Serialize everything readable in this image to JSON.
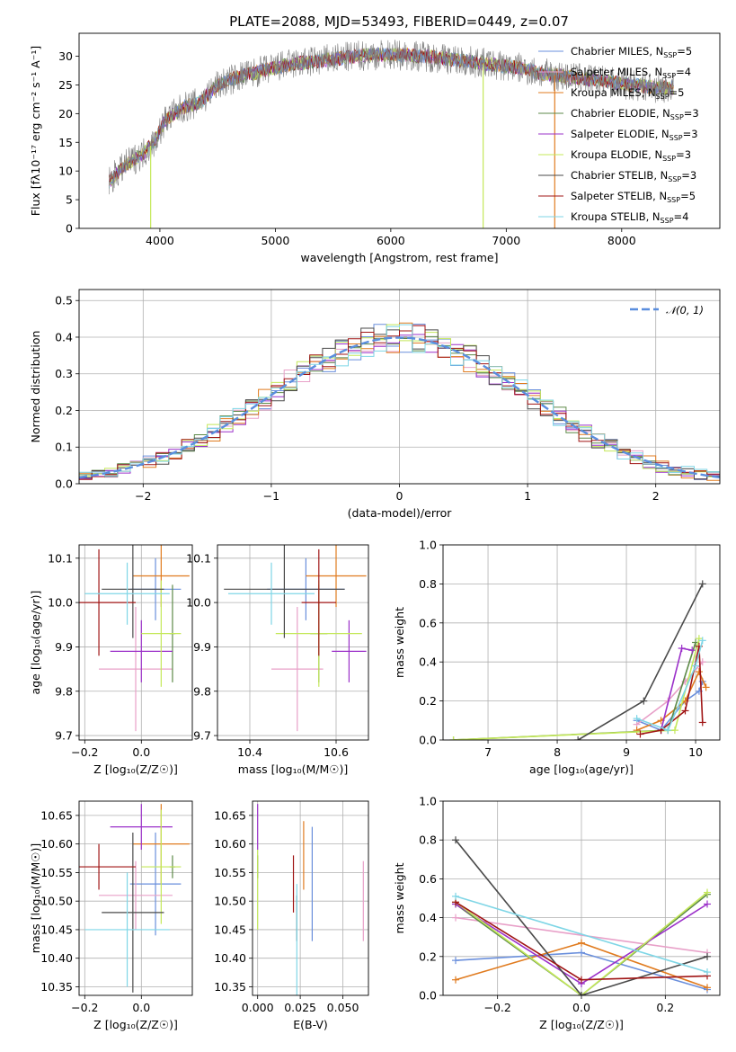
{
  "title": "PLATE=2088, MJD=53493, FIBERID=0449, z=0.07",
  "colors": {
    "Chabrier MILES": "#6a8fdc",
    "Salpeter MILES": "#e8a0c8",
    "Kroupa MILES": "#e07b1f",
    "Chabrier ELODIE": "#5d8a48",
    "Salpeter ELODIE": "#9b30c9",
    "Kroupa ELODIE": "#c4e85a",
    "Chabrier STELIB": "#4a4a4a",
    "Salpeter STELIB": "#a01515",
    "Kroupa STELIB": "#7fd6e6",
    "data": "#7f7f7f",
    "normal": "#5a8ede"
  },
  "legend": [
    {
      "name": "Chabrier MILES",
      "text": "Chabrier MILES, N",
      "sub": "SSP",
      "n": "=5"
    },
    {
      "name": "Salpeter MILES",
      "text": "Salpeter MILES, N",
      "sub": "SSP",
      "n": "=4"
    },
    {
      "name": "Kroupa MILES",
      "text": "Kroupa MILES, N",
      "sub": "SSP",
      "n": "=5"
    },
    {
      "name": "Chabrier ELODIE",
      "text": "Chabrier ELODIE, N",
      "sub": "SSP",
      "n": "=3"
    },
    {
      "name": "Salpeter ELODIE",
      "text": "Salpeter ELODIE, N",
      "sub": "SSP",
      "n": "=3"
    },
    {
      "name": "Kroupa ELODIE",
      "text": "Kroupa ELODIE, N",
      "sub": "SSP",
      "n": "=3"
    },
    {
      "name": "Chabrier STELIB",
      "text": "Chabrier STELIB, N",
      "sub": "SSP",
      "n": "=3"
    },
    {
      "name": "Salpeter STELIB",
      "text": "Salpeter STELIB, N",
      "sub": "SSP",
      "n": "=5"
    },
    {
      "name": "Kroupa STELIB",
      "text": "Kroupa STELIB, N",
      "sub": "SSP",
      "n": "=4"
    }
  ],
  "chart_data": [
    {
      "id": "spectrum",
      "type": "line",
      "xlabel": "wavelength [Angstrom, rest frame]",
      "ylabel": "Flux [fλ10⁻¹⁷ erg cm⁻² s⁻¹ A⁻¹]",
      "xlim": [
        3300,
        8850
      ],
      "ylim": [
        0,
        34
      ],
      "xticks": [
        4000,
        5000,
        6000,
        7000,
        8000
      ],
      "yticks": [
        0,
        5,
        10,
        15,
        20,
        25,
        30
      ],
      "grid": false,
      "continuum": {
        "x": [
          3550,
          3700,
          3850,
          3950,
          4050,
          4200,
          4350,
          4500,
          4700,
          4900,
          5100,
          5300,
          5500,
          5700,
          5900,
          6100,
          6300,
          6500,
          6700,
          6900,
          7100,
          7300,
          7500,
          7700,
          7900,
          8100,
          8300,
          8450
        ],
        "y": [
          8,
          11,
          13,
          15,
          19,
          21,
          22,
          25,
          26.5,
          27.5,
          28.5,
          29,
          29.5,
          30,
          30.3,
          30.2,
          30,
          29.5,
          29,
          28.5,
          28,
          27,
          26.5,
          26,
          25.5,
          25,
          24.5,
          24.5
        ]
      },
      "spikes": [
        {
          "x": 6800,
          "series": "Kroupa ELODIE"
        },
        {
          "x": 7420,
          "series": "Kroupa MILES"
        },
        {
          "x": 3920,
          "series": "Kroupa ELODIE"
        }
      ]
    },
    {
      "id": "residuals",
      "type": "step",
      "xlabel": "(data-model)/error",
      "ylabel": "Normed distribution",
      "xlim": [
        -2.5,
        2.5
      ],
      "ylim": [
        0,
        0.53
      ],
      "xticks": [
        -2,
        -1,
        0,
        1,
        2
      ],
      "yticks": [
        0.0,
        0.1,
        0.2,
        0.3,
        0.4,
        0.5
      ],
      "grid": true,
      "normal_curve": {
        "label": "𝒩(0, 1)",
        "mean": 0,
        "sigma": 1
      },
      "bin_width": 0.1
    },
    {
      "id": "age-vs-Z",
      "type": "errorbar",
      "xlabel": "Z [log₁₀(Z/Z☉)]",
      "ylabel": "age  [log₁₀(age/yr)]",
      "xlim": [
        -0.22,
        0.18
      ],
      "ylim": [
        9.69,
        10.13
      ],
      "xticks": [
        -0.2,
        0.0
      ],
      "yticks": [
        9.7,
        9.8,
        9.9,
        10.0,
        10.1
      ],
      "grid": true,
      "points": [
        {
          "series": "Chabrier MILES",
          "x": 0.05,
          "xerr": 0.09,
          "y": 10.03,
          "yerr": 0.07
        },
        {
          "series": "Salpeter MILES",
          "x": -0.02,
          "xerr": 0.13,
          "y": 9.85,
          "yerr": 0.14
        },
        {
          "series": "Kroupa MILES",
          "x": 0.07,
          "xerr": 0.1,
          "y": 10.06,
          "yerr": 0.07
        },
        {
          "series": "Chabrier ELODIE",
          "x": 0.11,
          "xerr": 0.01,
          "y": 9.93,
          "yerr": 0.11
        },
        {
          "series": "Salpeter ELODIE",
          "x": 0.0,
          "xerr": 0.11,
          "y": 9.89,
          "yerr": 0.07
        },
        {
          "series": "Kroupa ELODIE",
          "x": 0.07,
          "xerr": 0.07,
          "y": 9.93,
          "yerr": 0.12
        },
        {
          "series": "Chabrier STELIB",
          "x": -0.03,
          "xerr": 0.11,
          "y": 10.03,
          "yerr": 0.11
        },
        {
          "series": "Salpeter STELIB",
          "x": -0.15,
          "xerr": 0.13,
          "y": 10.0,
          "yerr": 0.12
        },
        {
          "series": "Kroupa STELIB",
          "x": -0.05,
          "xerr": 0.15,
          "y": 10.02,
          "yerr": 0.07
        }
      ]
    },
    {
      "id": "age-vs-mass",
      "type": "errorbar",
      "xlabel": "mass [log₁₀(M/M☉)]",
      "ylabel": "",
      "xlim": [
        10.325,
        10.675
      ],
      "ylim": [
        9.69,
        10.13
      ],
      "xticks": [
        10.4,
        10.6
      ],
      "yticks": [
        9.7,
        9.8,
        9.9,
        10.0,
        10.1
      ],
      "grid": true,
      "points": [
        {
          "series": "Chabrier MILES",
          "x": 10.53,
          "xerr": 0.09,
          "y": 10.03,
          "yerr": 0.07
        },
        {
          "series": "Salpeter MILES",
          "x": 10.51,
          "xerr": 0.06,
          "y": 9.85,
          "yerr": 0.14
        },
        {
          "series": "Kroupa MILES",
          "x": 10.6,
          "xerr": 0.07,
          "y": 10.06,
          "yerr": 0.07
        },
        {
          "series": "Chabrier ELODIE",
          "x": 10.56,
          "xerr": 0.02,
          "y": 9.93,
          "yerr": 0.11
        },
        {
          "series": "Salpeter ELODIE",
          "x": 10.63,
          "xerr": 0.04,
          "y": 9.89,
          "yerr": 0.07
        },
        {
          "series": "Kroupa ELODIE",
          "x": 10.56,
          "xerr": 0.1,
          "y": 9.93,
          "yerr": 0.12
        },
        {
          "series": "Chabrier STELIB",
          "x": 10.48,
          "xerr": 0.14,
          "y": 10.03,
          "yerr": 0.11
        },
        {
          "series": "Salpeter STELIB",
          "x": 10.56,
          "xerr": 0.04,
          "y": 10.0,
          "yerr": 0.12
        },
        {
          "series": "Kroupa STELIB",
          "x": 10.45,
          "xerr": 0.1,
          "y": 10.02,
          "yerr": 0.07
        }
      ]
    },
    {
      "id": "mass-weight-vs-age",
      "type": "line",
      "xlabel": "age  [log₁₀(age/yr)]",
      "ylabel": "mass weight",
      "xlim": [
        6.35,
        10.35
      ],
      "ylim": [
        0,
        1
      ],
      "xticks": [
        7,
        8,
        9,
        10
      ],
      "yticks": [
        0.0,
        0.2,
        0.4,
        0.6,
        0.8,
        1.0
      ],
      "grid": true,
      "series": [
        {
          "name": "Chabrier MILES",
          "x": [
            9.15,
            9.5,
            9.85,
            10.05,
            10.1
          ],
          "y": [
            0.1,
            0.05,
            0.2,
            0.25,
            0.3
          ]
        },
        {
          "name": "Salpeter MILES",
          "x": [
            9.15,
            9.6,
            9.85,
            10.1
          ],
          "y": [
            0.08,
            0.2,
            0.3,
            0.4
          ]
        },
        {
          "name": "Kroupa MILES",
          "x": [
            9.15,
            9.5,
            9.85,
            10.05,
            10.15
          ],
          "y": [
            0.05,
            0.1,
            0.2,
            0.35,
            0.27
          ]
        },
        {
          "name": "Chabrier ELODIE",
          "x": [
            6.5,
            9.6,
            10.0
          ],
          "y": [
            0.0,
            0.05,
            0.5
          ]
        },
        {
          "name": "Salpeter ELODIE",
          "x": [
            9.5,
            9.8,
            9.95
          ],
          "y": [
            0.05,
            0.47,
            0.46
          ]
        },
        {
          "name": "Kroupa ELODIE",
          "x": [
            6.5,
            9.7,
            10.05
          ],
          "y": [
            0.0,
            0.05,
            0.52
          ]
        },
        {
          "name": "Chabrier STELIB",
          "x": [
            8.3,
            9.25,
            10.1
          ],
          "y": [
            0.0,
            0.2,
            0.8
          ]
        },
        {
          "name": "Salpeter STELIB",
          "x": [
            9.2,
            9.5,
            9.85,
            10.05,
            10.1
          ],
          "y": [
            0.03,
            0.05,
            0.15,
            0.48,
            0.09
          ]
        },
        {
          "name": "Kroupa STELIB",
          "x": [
            9.15,
            9.6,
            10.0,
            10.1
          ],
          "y": [
            0.11,
            0.05,
            0.38,
            0.51
          ]
        }
      ]
    },
    {
      "id": "mass-vs-Z",
      "type": "errorbar",
      "xlabel": "Z [log₁₀(Z/Z☉)]",
      "ylabel": "mass [log₁₀(M/M☉)]",
      "xlim": [
        -0.22,
        0.18
      ],
      "ylim": [
        10.335,
        10.675
      ],
      "xticks": [
        -0.2,
        0.0
      ],
      "yticks": [
        10.35,
        10.4,
        10.45,
        10.5,
        10.55,
        10.6,
        10.65
      ],
      "grid": true,
      "points": [
        {
          "series": "Chabrier MILES",
          "x": 0.05,
          "xerr": 0.09,
          "y": 10.53,
          "yerr": 0.09
        },
        {
          "series": "Salpeter MILES",
          "x": -0.02,
          "xerr": 0.13,
          "y": 10.51,
          "yerr": 0.06
        },
        {
          "series": "Kroupa MILES",
          "x": 0.07,
          "xerr": 0.1,
          "y": 10.6,
          "yerr": 0.07
        },
        {
          "series": "Chabrier ELODIE",
          "x": 0.11,
          "xerr": 0.01,
          "y": 10.56,
          "yerr": 0.02
        },
        {
          "series": "Salpeter ELODIE",
          "x": 0.0,
          "xerr": 0.11,
          "y": 10.63,
          "yerr": 0.04
        },
        {
          "series": "Kroupa ELODIE",
          "x": 0.07,
          "xerr": 0.07,
          "y": 10.56,
          "yerr": 0.1
        },
        {
          "series": "Chabrier STELIB",
          "x": -0.03,
          "xerr": 0.11,
          "y": 10.48,
          "yerr": 0.14
        },
        {
          "series": "Salpeter STELIB",
          "x": -0.15,
          "xerr": 0.13,
          "y": 10.56,
          "yerr": 0.04
        },
        {
          "series": "Kroupa STELIB",
          "x": -0.05,
          "xerr": 0.15,
          "y": 10.45,
          "yerr": 0.1
        }
      ]
    },
    {
      "id": "mass-vs-EBV",
      "type": "errorbar",
      "xlabel": "E(B-V)",
      "ylabel": "",
      "xlim": [
        -0.003,
        0.065
      ],
      "ylim": [
        10.335,
        10.675
      ],
      "xticks": [
        0.0,
        0.025,
        0.05
      ],
      "yticks": [
        10.35,
        10.4,
        10.45,
        10.5,
        10.55,
        10.6,
        10.65
      ],
      "grid": true,
      "points": [
        {
          "series": "Chabrier MILES",
          "x": 0.032,
          "xerr": 0,
          "y": 10.53,
          "yerr": 0.1
        },
        {
          "series": "Salpeter MILES",
          "x": 0.062,
          "xerr": 0,
          "y": 10.5,
          "yerr": 0.07
        },
        {
          "series": "Kroupa MILES",
          "x": 0.027,
          "xerr": 0,
          "y": 10.58,
          "yerr": 0.06
        },
        {
          "series": "Chabrier ELODIE",
          "x": 0.0,
          "xerr": 0,
          "y": 10.56,
          "yerr": 0.02
        },
        {
          "series": "Salpeter ELODIE",
          "x": 0.0,
          "xerr": 0,
          "y": 10.63,
          "yerr": 0.04
        },
        {
          "series": "Kroupa ELODIE",
          "x": 0.0,
          "xerr": 0,
          "y": 10.52,
          "yerr": 0.07
        },
        {
          "series": "Chabrier STELIB",
          "x": 0.023,
          "xerr": 0,
          "y": 10.47,
          "yerr": 0.04
        },
        {
          "series": "Salpeter STELIB",
          "x": 0.021,
          "xerr": 0,
          "y": 10.53,
          "yerr": 0.05
        },
        {
          "series": "Kroupa STELIB",
          "x": 0.023,
          "xerr": 0,
          "y": 10.43,
          "yerr": 0.1
        }
      ]
    },
    {
      "id": "mass-weight-vs-Z",
      "type": "line",
      "xlabel": "Z [log₁₀(Z/Z☉)]",
      "ylabel": "mass weight",
      "xlim": [
        -0.33,
        0.33
      ],
      "ylim": [
        0,
        1
      ],
      "xticks": [
        -0.2,
        0.0,
        0.2
      ],
      "yticks": [
        0.0,
        0.2,
        0.4,
        0.6,
        0.8,
        1.0
      ],
      "grid": true,
      "series": [
        {
          "name": "Chabrier MILES",
          "x": [
            -0.3,
            0.0,
            0.3
          ],
          "y": [
            0.18,
            0.22,
            0.03
          ]
        },
        {
          "name": "Salpeter MILES",
          "x": [
            -0.3,
            0.3
          ],
          "y": [
            0.4,
            0.22
          ]
        },
        {
          "name": "Kroupa MILES",
          "x": [
            -0.3,
            0.0,
            0.3
          ],
          "y": [
            0.08,
            0.27,
            0.04
          ]
        },
        {
          "name": "Chabrier ELODIE",
          "x": [
            -0.3,
            0.0,
            0.3
          ],
          "y": [
            0.47,
            0.0,
            0.52
          ]
        },
        {
          "name": "Salpeter ELODIE",
          "x": [
            -0.3,
            0.0,
            0.3
          ],
          "y": [
            0.47,
            0.06,
            0.47
          ]
        },
        {
          "name": "Kroupa ELODIE",
          "x": [
            -0.3,
            0.0,
            0.3
          ],
          "y": [
            0.48,
            0.0,
            0.53
          ]
        },
        {
          "name": "Chabrier STELIB",
          "x": [
            -0.3,
            0.0,
            0.3
          ],
          "y": [
            0.8,
            0.0,
            0.2
          ]
        },
        {
          "name": "Salpeter STELIB",
          "x": [
            -0.3,
            0.0,
            0.3
          ],
          "y": [
            0.48,
            0.08,
            0.1
          ]
        },
        {
          "name": "Kroupa STELIB",
          "x": [
            -0.3,
            0.3
          ],
          "y": [
            0.51,
            0.12
          ]
        }
      ]
    }
  ]
}
